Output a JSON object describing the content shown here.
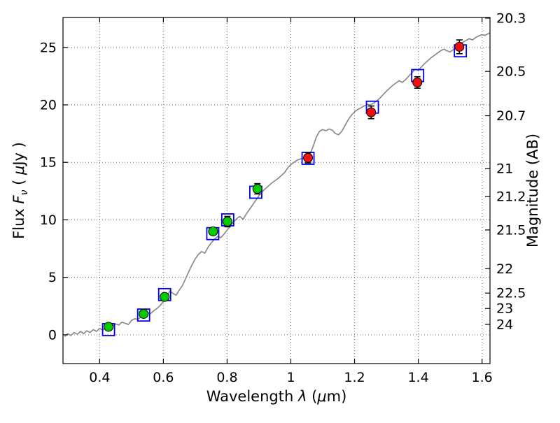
{
  "chart_data": {
    "type": "line+scatter",
    "title": "",
    "xlabel": "Wavelength λ (μm)",
    "xlabel_parts": [
      {
        "t": "Wavelength  "
      },
      {
        "t": "λ",
        "i": 1
      },
      {
        "t": " ("
      },
      {
        "t": "μ",
        "i": 1
      },
      {
        "t": "m)"
      }
    ],
    "ylabel_left": "Flux Fν ( μJy )",
    "ylabel_left_parts": [
      {
        "t": "Flux  "
      },
      {
        "t": "F",
        "i": 1
      },
      {
        "t": "ν",
        "i": 1,
        "sub": 1
      },
      {
        "t": "  ( "
      },
      {
        "t": "μ",
        "i": 1
      },
      {
        "t": "Jy )"
      }
    ],
    "ylabel_right": "Magnitude (AB)",
    "ylabel_right_parts": [
      {
        "t": "Magnitude (AB)"
      }
    ],
    "xlim": [
      0.285,
      1.625
    ],
    "ylim": [
      -2.5,
      27.6
    ],
    "x_ticks": [
      0.4,
      0.6,
      0.8,
      1.0,
      1.2,
      1.4,
      1.6
    ],
    "x_tick_labels": [
      "0.4",
      "0.6",
      "0.8",
      "1",
      "1.2",
      "1.4",
      "1.6"
    ],
    "y_ticks_left": [
      0,
      5,
      10,
      15,
      20,
      25
    ],
    "y_tick_labels_left": [
      "0",
      "5",
      "10",
      "15",
      "20",
      "25"
    ],
    "y_ticks_right_mag": [
      20.3,
      20.5,
      20.7,
      21.0,
      21.2,
      21.5,
      22.0,
      22.5,
      23.0,
      24.0
    ],
    "y_tick_labels_right": [
      "20.3",
      "20.5",
      "20.7",
      "21",
      "21.2",
      "21.5",
      "22",
      "22.5",
      "23",
      "24"
    ],
    "mag_zeropoint_ab_microjansky": 23.9,
    "grid": {
      "show": true,
      "style": "dotted"
    },
    "legend": {
      "show": false
    },
    "colors": {
      "spectrum": "#8a8a8a",
      "model_photometry": "#0000ee",
      "observed_optical": "#00cc00",
      "observed_infrared": "#ee1111",
      "error_bars": "#000000",
      "axes": "#000000"
    },
    "series": [
      {
        "name": "best-fit-model-spectrum",
        "type": "line",
        "color": "#8a8a8a",
        "points": [
          [
            0.29,
            -0.15
          ],
          [
            0.3,
            0.1
          ],
          [
            0.31,
            -0.05
          ],
          [
            0.32,
            0.2
          ],
          [
            0.33,
            0.05
          ],
          [
            0.34,
            0.3
          ],
          [
            0.35,
            0.1
          ],
          [
            0.36,
            0.35
          ],
          [
            0.37,
            0.2
          ],
          [
            0.38,
            0.45
          ],
          [
            0.39,
            0.3
          ],
          [
            0.4,
            0.55
          ],
          [
            0.41,
            0.4
          ],
          [
            0.42,
            0.65
          ],
          [
            0.43,
            0.8
          ],
          [
            0.44,
            0.7
          ],
          [
            0.45,
            0.95
          ],
          [
            0.46,
            0.85
          ],
          [
            0.47,
            1.1
          ],
          [
            0.48,
            1.0
          ],
          [
            0.49,
            0.9
          ],
          [
            0.5,
            1.25
          ],
          [
            0.51,
            1.4
          ],
          [
            0.52,
            1.35
          ],
          [
            0.53,
            1.55
          ],
          [
            0.54,
            1.7
          ],
          [
            0.55,
            1.9
          ],
          [
            0.56,
            1.85
          ],
          [
            0.57,
            2.1
          ],
          [
            0.58,
            2.3
          ],
          [
            0.59,
            2.55
          ],
          [
            0.6,
            2.9
          ],
          [
            0.61,
            3.3
          ],
          [
            0.62,
            3.8
          ],
          [
            0.63,
            3.6
          ],
          [
            0.64,
            3.45
          ],
          [
            0.65,
            3.9
          ],
          [
            0.66,
            4.3
          ],
          [
            0.67,
            4.9
          ],
          [
            0.68,
            5.5
          ],
          [
            0.69,
            6.1
          ],
          [
            0.7,
            6.6
          ],
          [
            0.71,
            7.0
          ],
          [
            0.72,
            7.25
          ],
          [
            0.73,
            7.1
          ],
          [
            0.74,
            7.6
          ],
          [
            0.75,
            8.0
          ],
          [
            0.76,
            8.3
          ],
          [
            0.77,
            8.55
          ],
          [
            0.78,
            8.45
          ],
          [
            0.79,
            8.75
          ],
          [
            0.8,
            9.1
          ],
          [
            0.81,
            9.45
          ],
          [
            0.82,
            9.8
          ],
          [
            0.83,
            10.1
          ],
          [
            0.84,
            10.3
          ],
          [
            0.85,
            10.05
          ],
          [
            0.86,
            10.5
          ],
          [
            0.87,
            10.9
          ],
          [
            0.88,
            11.3
          ],
          [
            0.89,
            11.7
          ],
          [
            0.9,
            12.1
          ],
          [
            0.91,
            12.45
          ],
          [
            0.92,
            12.7
          ],
          [
            0.93,
            12.95
          ],
          [
            0.94,
            13.2
          ],
          [
            0.95,
            13.4
          ],
          [
            0.96,
            13.6
          ],
          [
            0.97,
            13.85
          ],
          [
            0.98,
            14.1
          ],
          [
            0.99,
            14.5
          ],
          [
            1.0,
            14.8
          ],
          [
            1.01,
            15.0
          ],
          [
            1.02,
            15.2
          ],
          [
            1.03,
            15.3
          ],
          [
            1.04,
            15.35
          ],
          [
            1.05,
            15.45
          ],
          [
            1.06,
            15.7
          ],
          [
            1.07,
            16.4
          ],
          [
            1.08,
            17.2
          ],
          [
            1.09,
            17.7
          ],
          [
            1.1,
            17.85
          ],
          [
            1.11,
            17.75
          ],
          [
            1.12,
            17.9
          ],
          [
            1.13,
            17.8
          ],
          [
            1.14,
            17.5
          ],
          [
            1.15,
            17.4
          ],
          [
            1.16,
            17.7
          ],
          [
            1.17,
            18.2
          ],
          [
            1.18,
            18.7
          ],
          [
            1.19,
            19.1
          ],
          [
            1.2,
            19.4
          ],
          [
            1.21,
            19.6
          ],
          [
            1.22,
            19.75
          ],
          [
            1.23,
            19.9
          ],
          [
            1.24,
            20.05
          ],
          [
            1.25,
            20.0
          ],
          [
            1.26,
            20.15
          ],
          [
            1.27,
            20.35
          ],
          [
            1.28,
            20.6
          ],
          [
            1.29,
            20.9
          ],
          [
            1.3,
            21.2
          ],
          [
            1.31,
            21.45
          ],
          [
            1.32,
            21.7
          ],
          [
            1.33,
            21.9
          ],
          [
            1.34,
            22.1
          ],
          [
            1.35,
            21.95
          ],
          [
            1.36,
            22.2
          ],
          [
            1.37,
            22.5
          ],
          [
            1.38,
            22.8
          ],
          [
            1.39,
            23.1
          ],
          [
            1.4,
            23.0
          ],
          [
            1.41,
            23.3
          ],
          [
            1.42,
            23.6
          ],
          [
            1.43,
            23.85
          ],
          [
            1.44,
            24.1
          ],
          [
            1.45,
            24.3
          ],
          [
            1.46,
            24.5
          ],
          [
            1.47,
            24.7
          ],
          [
            1.48,
            24.85
          ],
          [
            1.49,
            24.7
          ],
          [
            1.5,
            24.6
          ],
          [
            1.51,
            24.8
          ],
          [
            1.52,
            25.05
          ],
          [
            1.53,
            25.25
          ],
          [
            1.54,
            25.45
          ],
          [
            1.55,
            25.6
          ],
          [
            1.56,
            25.75
          ],
          [
            1.57,
            25.65
          ],
          [
            1.58,
            25.85
          ],
          [
            1.59,
            26.0
          ],
          [
            1.6,
            26.1
          ],
          [
            1.61,
            26.05
          ],
          [
            1.62,
            26.2
          ],
          [
            1.63,
            26.3
          ]
        ]
      },
      {
        "name": "model-photometry",
        "type": "scatter",
        "marker": "open-square",
        "color": "#0000ee",
        "points": [
          [
            0.428,
            0.45
          ],
          [
            0.538,
            1.72
          ],
          [
            0.604,
            3.5
          ],
          [
            0.755,
            8.8
          ],
          [
            0.802,
            10.0
          ],
          [
            0.89,
            12.4
          ],
          [
            1.054,
            15.35
          ],
          [
            1.256,
            19.8
          ],
          [
            1.398,
            22.55
          ],
          [
            1.532,
            24.7
          ]
        ]
      },
      {
        "name": "observed-photometry-optical",
        "type": "scatter",
        "marker": "filled-circle",
        "color": "#00cc00",
        "error_color": "#000000",
        "points": [
          [
            0.428,
            0.7,
            0.15
          ],
          [
            0.538,
            1.82,
            0.12
          ],
          [
            0.604,
            3.3,
            0.2
          ],
          [
            0.756,
            9.0,
            0.3
          ],
          [
            0.801,
            9.85,
            0.45
          ],
          [
            0.895,
            12.7,
            0.45
          ]
        ]
      },
      {
        "name": "observed-photometry-infrared",
        "type": "scatter",
        "marker": "filled-circle",
        "color": "#ee1111",
        "error_color": "#000000",
        "points": [
          [
            1.054,
            15.4,
            0.45
          ],
          [
            1.252,
            19.35,
            0.55
          ],
          [
            1.397,
            21.95,
            0.5
          ],
          [
            1.529,
            25.05,
            0.6
          ]
        ]
      }
    ]
  }
}
